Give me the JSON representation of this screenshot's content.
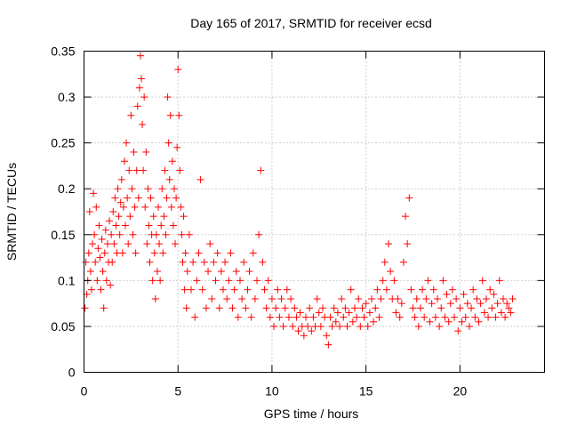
{
  "chart_data": {
    "type": "scatter",
    "title": "Day 165 of 2017, SRMTID for receiver ecsd",
    "xlabel": "GPS time / hours",
    "ylabel": "SRMTID / TECUs",
    "xlim": [
      0,
      24.5
    ],
    "ylim": [
      0,
      0.35
    ],
    "x_ticks": [
      0,
      5,
      10,
      15,
      20
    ],
    "x_tick_labels": [
      "0",
      "5",
      "10",
      "15",
      "20"
    ],
    "y_ticks": [
      0,
      0.05,
      0.1,
      0.15,
      0.2,
      0.25,
      0.3,
      0.35
    ],
    "y_tick_labels": [
      "0",
      "0.05",
      "0.1",
      "0.15",
      "0.2",
      "0.25",
      "0.3",
      "0.35"
    ],
    "grid": true,
    "marker": "+",
    "color": "#ff0000",
    "series": [
      {
        "name": "SRMTID",
        "points": [
          [
            0.05,
            0.07
          ],
          [
            0.1,
            0.12
          ],
          [
            0.15,
            0.085
          ],
          [
            0.2,
            0.1
          ],
          [
            0.25,
            0.13
          ],
          [
            0.3,
            0.175
          ],
          [
            0.35,
            0.11
          ],
          [
            0.4,
            0.09
          ],
          [
            0.45,
            0.14
          ],
          [
            0.5,
            0.195
          ],
          [
            0.55,
            0.15
          ],
          [
            0.6,
            0.12
          ],
          [
            0.65,
            0.18
          ],
          [
            0.7,
            0.1
          ],
          [
            0.75,
            0.135
          ],
          [
            0.8,
            0.16
          ],
          [
            0.85,
            0.125
          ],
          [
            0.9,
            0.09
          ],
          [
            0.95,
            0.145
          ],
          [
            1.0,
            0.11
          ],
          [
            1.05,
            0.07
          ],
          [
            1.1,
            0.13
          ],
          [
            1.15,
            0.155
          ],
          [
            1.2,
            0.1
          ],
          [
            1.25,
            0.14
          ],
          [
            1.3,
            0.12
          ],
          [
            1.35,
            0.165
          ],
          [
            1.4,
            0.095
          ],
          [
            1.45,
            0.15
          ],
          [
            1.5,
            0.12
          ],
          [
            1.55,
            0.175
          ],
          [
            1.6,
            0.14
          ],
          [
            1.65,
            0.19
          ],
          [
            1.7,
            0.16
          ],
          [
            1.75,
            0.13
          ],
          [
            1.8,
            0.2
          ],
          [
            1.85,
            0.17
          ],
          [
            1.9,
            0.15
          ],
          [
            1.95,
            0.185
          ],
          [
            2.0,
            0.21
          ],
          [
            2.05,
            0.13
          ],
          [
            2.1,
            0.18
          ],
          [
            2.15,
            0.23
          ],
          [
            2.2,
            0.16
          ],
          [
            2.25,
            0.25
          ],
          [
            2.3,
            0.19
          ],
          [
            2.35,
            0.14
          ],
          [
            2.4,
            0.22
          ],
          [
            2.45,
            0.17
          ],
          [
            2.5,
            0.28
          ],
          [
            2.55,
            0.2
          ],
          [
            2.6,
            0.15
          ],
          [
            2.65,
            0.24
          ],
          [
            2.7,
            0.18
          ],
          [
            2.75,
            0.13
          ],
          [
            2.8,
            0.22
          ],
          [
            2.85,
            0.29
          ],
          [
            2.9,
            0.19
          ],
          [
            2.95,
            0.31
          ],
          [
            3.0,
            0.345
          ],
          [
            3.05,
            0.32
          ],
          [
            3.1,
            0.27
          ],
          [
            3.15,
            0.22
          ],
          [
            3.2,
            0.3
          ],
          [
            3.25,
            0.18
          ],
          [
            3.3,
            0.24
          ],
          [
            3.35,
            0.14
          ],
          [
            3.4,
            0.2
          ],
          [
            3.45,
            0.16
          ],
          [
            3.5,
            0.12
          ],
          [
            3.55,
            0.19
          ],
          [
            3.6,
            0.15
          ],
          [
            3.65,
            0.1
          ],
          [
            3.7,
            0.17
          ],
          [
            3.75,
            0.13
          ],
          [
            3.8,
            0.08
          ],
          [
            3.85,
            0.15
          ],
          [
            3.9,
            0.11
          ],
          [
            3.95,
            0.18
          ],
          [
            4.0,
            0.14
          ],
          [
            4.05,
            0.1
          ],
          [
            4.1,
            0.16
          ],
          [
            4.15,
            0.2
          ],
          [
            4.2,
            0.13
          ],
          [
            4.25,
            0.17
          ],
          [
            4.3,
            0.22
          ],
          [
            4.35,
            0.15
          ],
          [
            4.4,
            0.19
          ],
          [
            4.45,
            0.3
          ],
          [
            4.5,
            0.25
          ],
          [
            4.55,
            0.21
          ],
          [
            4.6,
            0.28
          ],
          [
            4.65,
            0.18
          ],
          [
            4.7,
            0.23
          ],
          [
            4.75,
            0.16
          ],
          [
            4.8,
            0.2
          ],
          [
            4.85,
            0.14
          ],
          [
            4.9,
            0.19
          ],
          [
            4.95,
            0.245
          ],
          [
            5.0,
            0.33
          ],
          [
            5.05,
            0.28
          ],
          [
            5.1,
            0.22
          ],
          [
            5.15,
            0.18
          ],
          [
            5.2,
            0.15
          ],
          [
            5.25,
            0.12
          ],
          [
            5.3,
            0.17
          ],
          [
            5.35,
            0.09
          ],
          [
            5.4,
            0.13
          ],
          [
            5.45,
            0.07
          ],
          [
            5.5,
            0.11
          ],
          [
            5.6,
            0.15
          ],
          [
            5.7,
            0.09
          ],
          [
            5.8,
            0.12
          ],
          [
            5.9,
            0.06
          ],
          [
            6.0,
            0.1
          ],
          [
            6.1,
            0.13
          ],
          [
            6.2,
            0.21
          ],
          [
            6.3,
            0.09
          ],
          [
            6.4,
            0.12
          ],
          [
            6.5,
            0.07
          ],
          [
            6.6,
            0.11
          ],
          [
            6.7,
            0.14
          ],
          [
            6.8,
            0.08
          ],
          [
            6.9,
            0.12
          ],
          [
            7.0,
            0.1
          ],
          [
            7.1,
            0.13
          ],
          [
            7.2,
            0.07
          ],
          [
            7.3,
            0.11
          ],
          [
            7.4,
            0.09
          ],
          [
            7.5,
            0.12
          ],
          [
            7.6,
            0.08
          ],
          [
            7.7,
            0.1
          ],
          [
            7.8,
            0.13
          ],
          [
            7.9,
            0.07
          ],
          [
            8.0,
            0.09
          ],
          [
            8.1,
            0.11
          ],
          [
            8.2,
            0.06
          ],
          [
            8.3,
            0.1
          ],
          [
            8.4,
            0.08
          ],
          [
            8.5,
            0.12
          ],
          [
            8.6,
            0.07
          ],
          [
            8.7,
            0.09
          ],
          [
            8.8,
            0.11
          ],
          [
            8.9,
            0.06
          ],
          [
            9.0,
            0.13
          ],
          [
            9.1,
            0.08
          ],
          [
            9.2,
            0.1
          ],
          [
            9.3,
            0.15
          ],
          [
            9.4,
            0.22
          ],
          [
            9.5,
            0.12
          ],
          [
            9.6,
            0.09
          ],
          [
            9.7,
            0.07
          ],
          [
            9.8,
            0.1
          ],
          [
            9.9,
            0.06
          ],
          [
            10.0,
            0.08
          ],
          [
            10.1,
            0.05
          ],
          [
            10.2,
            0.07
          ],
          [
            10.3,
            0.09
          ],
          [
            10.4,
            0.06
          ],
          [
            10.5,
            0.08
          ],
          [
            10.6,
            0.05
          ],
          [
            10.7,
            0.07
          ],
          [
            10.8,
            0.09
          ],
          [
            10.9,
            0.06
          ],
          [
            11.0,
            0.08
          ],
          [
            11.1,
            0.05
          ],
          [
            11.2,
            0.07
          ],
          [
            11.3,
            0.06
          ],
          [
            11.4,
            0.045
          ],
          [
            11.5,
            0.065
          ],
          [
            11.6,
            0.05
          ],
          [
            11.7,
            0.04
          ],
          [
            11.8,
            0.06
          ],
          [
            11.9,
            0.05
          ],
          [
            12.0,
            0.07
          ],
          [
            12.1,
            0.045
          ],
          [
            12.2,
            0.06
          ],
          [
            12.3,
            0.05
          ],
          [
            12.4,
            0.08
          ],
          [
            12.5,
            0.065
          ],
          [
            12.6,
            0.05
          ],
          [
            12.7,
            0.07
          ],
          [
            12.8,
            0.06
          ],
          [
            12.9,
            0.04
          ],
          [
            13.0,
            0.03
          ],
          [
            13.1,
            0.06
          ],
          [
            13.2,
            0.05
          ],
          [
            13.3,
            0.07
          ],
          [
            13.4,
            0.055
          ],
          [
            13.5,
            0.065
          ],
          [
            13.6,
            0.05
          ],
          [
            13.7,
            0.08
          ],
          [
            13.8,
            0.06
          ],
          [
            13.9,
            0.07
          ],
          [
            14.0,
            0.05
          ],
          [
            14.1,
            0.065
          ],
          [
            14.2,
            0.09
          ],
          [
            14.3,
            0.055
          ],
          [
            14.4,
            0.07
          ],
          [
            14.5,
            0.06
          ],
          [
            14.6,
            0.08
          ],
          [
            14.7,
            0.05
          ],
          [
            14.8,
            0.07
          ],
          [
            14.9,
            0.06
          ],
          [
            15.0,
            0.075
          ],
          [
            15.1,
            0.05
          ],
          [
            15.2,
            0.065
          ],
          [
            15.3,
            0.08
          ],
          [
            15.4,
            0.055
          ],
          [
            15.5,
            0.07
          ],
          [
            15.6,
            0.09
          ],
          [
            15.7,
            0.06
          ],
          [
            15.8,
            0.08
          ],
          [
            15.9,
            0.1
          ],
          [
            16.0,
            0.12
          ],
          [
            16.1,
            0.09
          ],
          [
            16.2,
            0.14
          ],
          [
            16.3,
            0.11
          ],
          [
            16.4,
            0.08
          ],
          [
            16.5,
            0.1
          ],
          [
            16.6,
            0.065
          ],
          [
            16.7,
            0.08
          ],
          [
            16.8,
            0.06
          ],
          [
            16.9,
            0.075
          ],
          [
            17.0,
            0.12
          ],
          [
            17.1,
            0.17
          ],
          [
            17.2,
            0.14
          ],
          [
            17.3,
            0.19
          ],
          [
            17.4,
            0.09
          ],
          [
            17.5,
            0.07
          ],
          [
            17.6,
            0.06
          ],
          [
            17.7,
            0.08
          ],
          [
            17.8,
            0.05
          ],
          [
            17.9,
            0.07
          ],
          [
            18.0,
            0.09
          ],
          [
            18.1,
            0.06
          ],
          [
            18.2,
            0.08
          ],
          [
            18.3,
            0.1
          ],
          [
            18.4,
            0.055
          ],
          [
            18.5,
            0.075
          ],
          [
            18.6,
            0.09
          ],
          [
            18.7,
            0.06
          ],
          [
            18.8,
            0.08
          ],
          [
            18.9,
            0.05
          ],
          [
            19.0,
            0.07
          ],
          [
            19.1,
            0.1
          ],
          [
            19.2,
            0.06
          ],
          [
            19.3,
            0.085
          ],
          [
            19.4,
            0.055
          ],
          [
            19.5,
            0.075
          ],
          [
            19.6,
            0.09
          ],
          [
            19.7,
            0.06
          ],
          [
            19.8,
            0.08
          ],
          [
            19.9,
            0.045
          ],
          [
            20.0,
            0.07
          ],
          [
            20.1,
            0.055
          ],
          [
            20.2,
            0.085
          ],
          [
            20.3,
            0.06
          ],
          [
            20.4,
            0.075
          ],
          [
            20.5,
            0.05
          ],
          [
            20.6,
            0.07
          ],
          [
            20.7,
            0.09
          ],
          [
            20.8,
            0.06
          ],
          [
            20.9,
            0.08
          ],
          [
            21.0,
            0.055
          ],
          [
            21.1,
            0.075
          ],
          [
            21.2,
            0.1
          ],
          [
            21.3,
            0.065
          ],
          [
            21.4,
            0.08
          ],
          [
            21.5,
            0.06
          ],
          [
            21.6,
            0.09
          ],
          [
            21.7,
            0.07
          ],
          [
            21.8,
            0.085
          ],
          [
            21.9,
            0.06
          ],
          [
            22.0,
            0.075
          ],
          [
            22.1,
            0.1
          ],
          [
            22.2,
            0.065
          ],
          [
            22.3,
            0.08
          ],
          [
            22.4,
            0.06
          ],
          [
            22.5,
            0.075
          ],
          [
            22.6,
            0.07
          ],
          [
            22.7,
            0.065
          ],
          [
            22.8,
            0.08
          ]
        ]
      }
    ]
  }
}
